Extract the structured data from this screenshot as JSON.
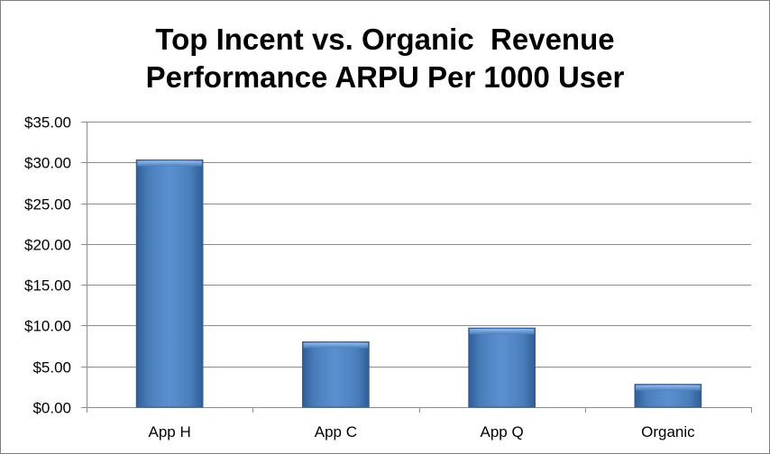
{
  "chart_data": {
    "type": "bar",
    "title_lines": [
      "Top Incent vs. Organic  Revenue",
      "Performance ARPU Per 1000 User"
    ],
    "categories": [
      "App H",
      "App C",
      "App Q",
      "Organic"
    ],
    "values": [
      30.3,
      8.0,
      9.7,
      2.8
    ],
    "ylim": [
      0,
      35
    ],
    "yticks": [
      0,
      5,
      10,
      15,
      20,
      25,
      30,
      35
    ],
    "ytick_labels": [
      "$0.00",
      "$5.00",
      "$10.00",
      "$15.00",
      "$20.00",
      "$25.00",
      "$30.00",
      "$35.00"
    ],
    "grid": true,
    "legend": "none",
    "bar_color": "#4a7ebb",
    "bar_edge_color": "#2f5d96"
  }
}
